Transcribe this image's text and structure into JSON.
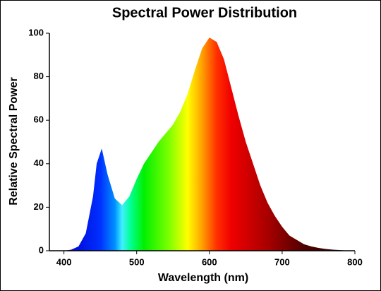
{
  "chart_data": {
    "type": "area",
    "title": "Spectral Power Distribution",
    "x_label": "Wavelength (nm)",
    "y_label": "Relative Spectral Power",
    "x": [
      380,
      390,
      400,
      410,
      420,
      430,
      440,
      445,
      452,
      460,
      470,
      480,
      490,
      500,
      510,
      520,
      530,
      540,
      550,
      560,
      570,
      580,
      590,
      600,
      610,
      620,
      630,
      640,
      650,
      660,
      670,
      680,
      690,
      700,
      710,
      720,
      730,
      740,
      750,
      760,
      770,
      780,
      790,
      800
    ],
    "values": [
      0,
      0,
      0,
      0.5,
      2,
      8,
      25,
      40,
      47,
      35,
      24,
      21,
      25,
      33,
      40,
      45,
      50,
      54,
      58,
      64,
      72,
      83,
      93,
      98,
      96,
      88,
      75,
      62,
      50,
      40,
      30,
      22,
      16,
      11,
      7,
      5,
      3,
      2,
      1.3,
      0.8,
      0.5,
      0.3,
      0.1,
      0
    ],
    "xlim": [
      380,
      800
    ],
    "ylim": [
      0,
      100
    ],
    "xticks": [
      400,
      500,
      600,
      700,
      800
    ],
    "yticks": [
      0,
      20,
      40,
      60,
      80,
      100
    ]
  }
}
